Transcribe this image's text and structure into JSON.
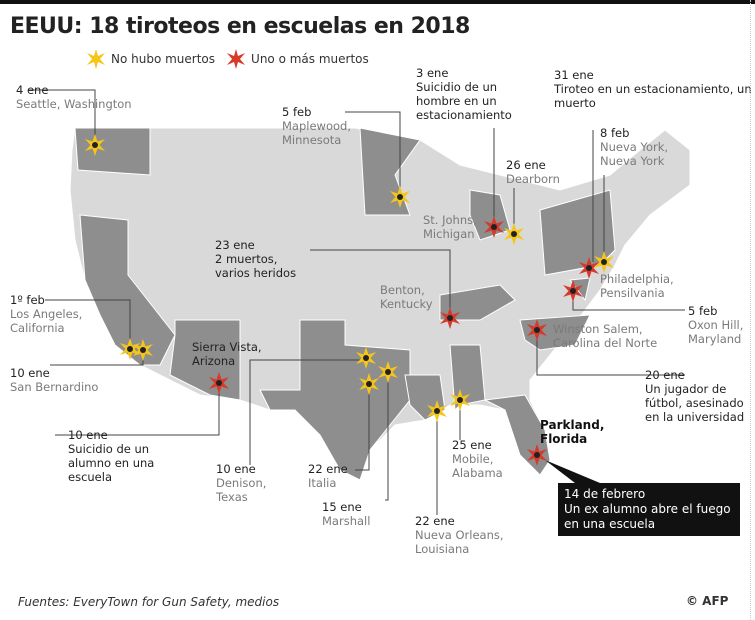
{
  "title": "EEUU: 18 tiroteos en escuelas en 2018",
  "legend": {
    "no_deaths": "No hubo muertos",
    "deaths": "Uno o más muertos"
  },
  "colors": {
    "no_deaths": "#f5c518",
    "deaths": "#d63a2a",
    "state_highlight": "#8e8e8e",
    "state_base": "#d9d9d9"
  },
  "events": [
    {
      "date": "4 ene",
      "place": "Seattle, Washington",
      "type": "no_deaths"
    },
    {
      "date": "5 feb",
      "place": "Maplewood, Minnesota",
      "type": "no_deaths"
    },
    {
      "date": "3 ene",
      "detail": "Suicidio de un hombre en un estacionamiento",
      "place": "St. Johns, Michigan",
      "type": "deaths"
    },
    {
      "date": "26 ene",
      "place": "Dearborn",
      "type": "no_deaths"
    },
    {
      "date": "31 ene",
      "detail": "Tiroteo en un estacionamiento, un muerto",
      "place": "Philadelphia, Pensilvania",
      "type": "deaths"
    },
    {
      "date": "8 feb",
      "place": "Nueva York, Nueva York",
      "type": "no_deaths"
    },
    {
      "date": "23 ene",
      "detail": "2 muertos, varios heridos",
      "place": "Benton, Kentucky",
      "type": "deaths"
    },
    {
      "date": "1º feb",
      "place": "Los Angeles, California",
      "type": "no_deaths"
    },
    {
      "date": "10 ene",
      "place": "San Bernardino",
      "type": "no_deaths"
    },
    {
      "date": "5 feb",
      "place": "Oxon Hill, Maryland",
      "type": "deaths"
    },
    {
      "date": "20 ene",
      "detail": "Un jugador de fútbol, asesinado en la universidad",
      "place": "Winston Salem, Carolina del Norte",
      "type": "deaths"
    },
    {
      "date": "10 ene",
      "detail": "Suicidio de un alumno en una escuela",
      "place": "Sierra Vista, Arizona",
      "type": "deaths"
    },
    {
      "date": "10 ene",
      "place": "Denison, Texas",
      "type": "no_deaths"
    },
    {
      "date": "22 ene",
      "place": "Italia",
      "type": "no_deaths"
    },
    {
      "date": "15 ene",
      "place": "Marshall",
      "type": "no_deaths"
    },
    {
      "date": "22 ene",
      "place": "Nueva Orleans, Louisiana",
      "type": "no_deaths"
    },
    {
      "date": "25 ene",
      "place": "Mobile, Alabama",
      "type": "no_deaths"
    },
    {
      "date": "14 de febrero",
      "detail": "Un ex alumno abre el fuego en una escuela",
      "place": "Parkland, Florida",
      "type": "deaths"
    }
  ],
  "footer": {
    "source": "Fuentes: EveryTown for Gun Safety, medios",
    "credit": "© AFP"
  }
}
